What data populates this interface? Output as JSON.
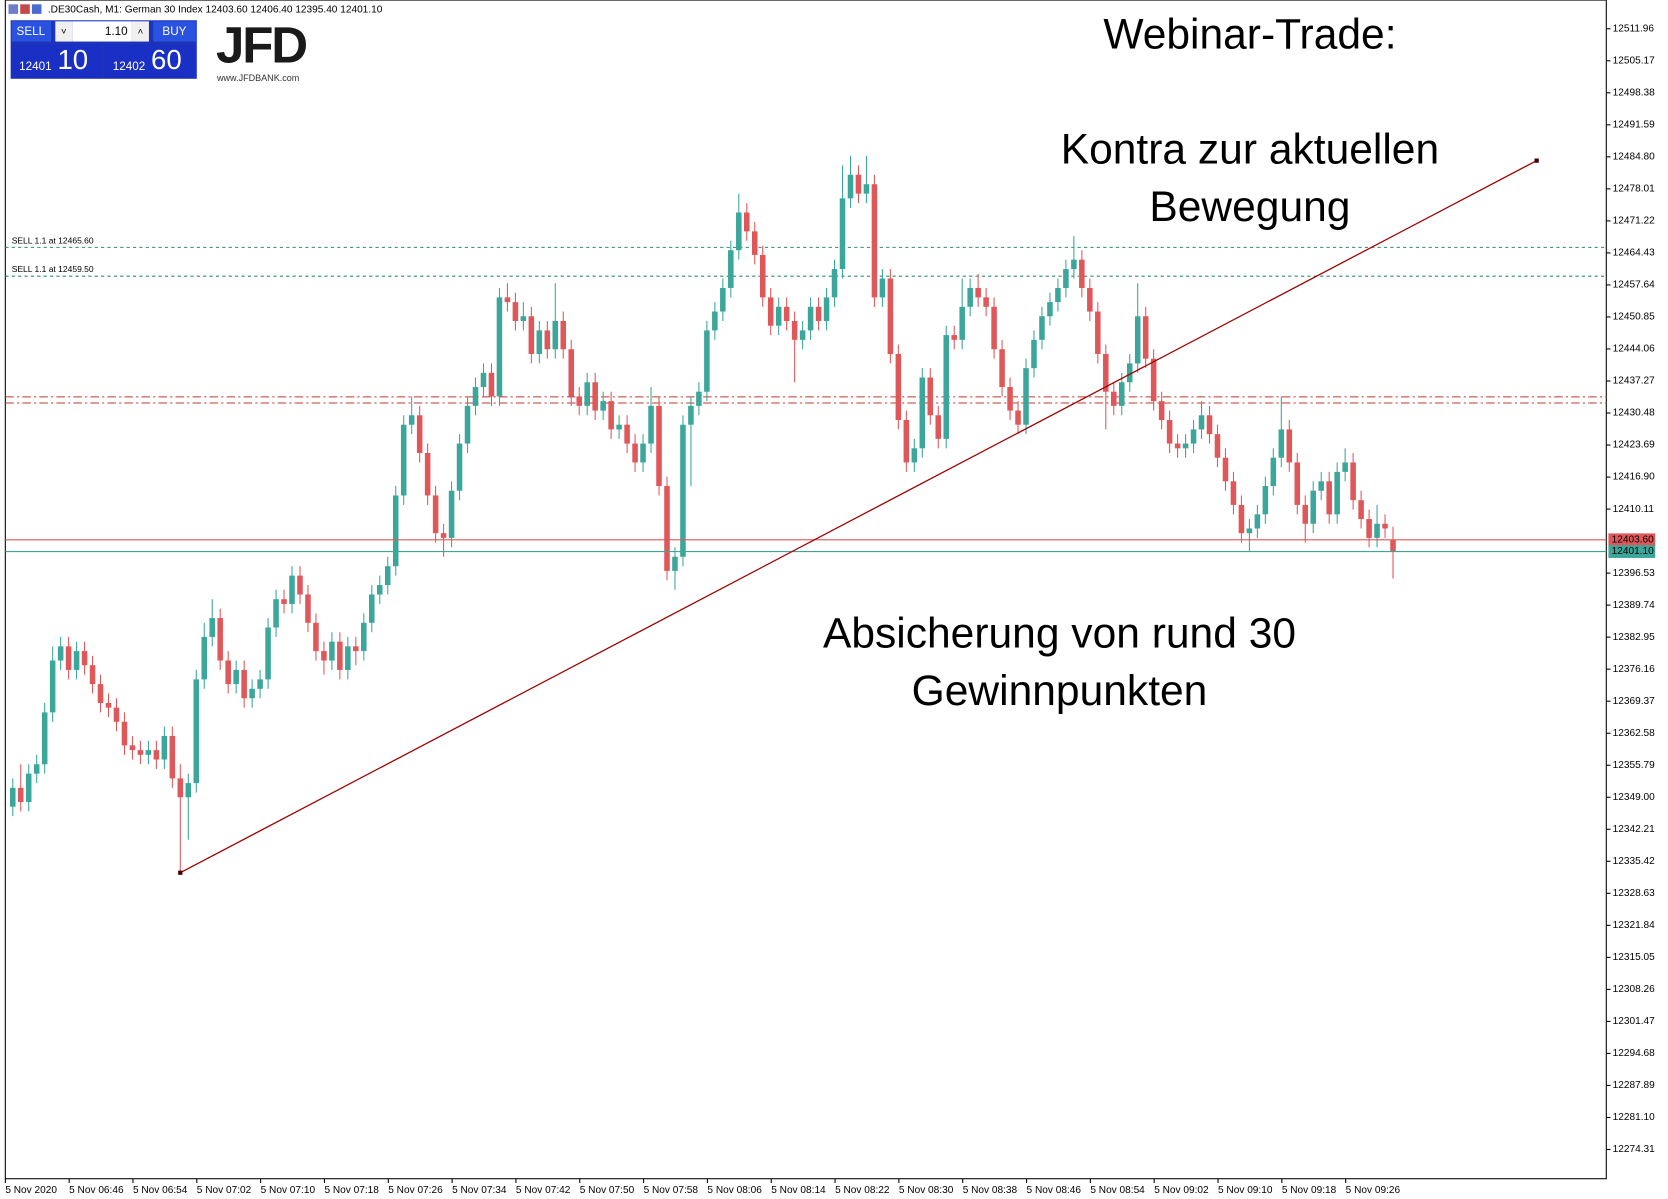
{
  "header": {
    "title": ".DE30Cash, M1:  German 30 Index  12403.60 12406.40 12395.40 12401.10"
  },
  "trade_panel": {
    "sell": "SELL",
    "buy": "BUY",
    "lot": "1.10",
    "sell_price": "12401",
    "sell_pips": "10",
    "buy_price": "12402",
    "buy_pips": "60"
  },
  "logo": {
    "brand": "JFD",
    "url": "www.JFDBANK.com"
  },
  "annotations": {
    "title": "Webinar-Trade:",
    "line1": "Kontra zur aktuellen",
    "line2": "Bewegung",
    "line3": "Absicherung von rund 30",
    "line4": "Gewinnpunkten"
  },
  "chart_data": {
    "type": "candlestick",
    "up_color": "#3aa79a",
    "down_color": "#e0575a",
    "ylim": [
      12268.11,
      12518.05
    ],
    "yticks": [
      12511.96,
      12505.17,
      12498.38,
      12491.59,
      {
        "value": 12484.8,
        "label": "12484.80"
      },
      12478.01,
      12471.22,
      12464.43,
      12457.64,
      12450.85,
      12444.06,
      12437.27,
      12430.48,
      12423.69,
      {
        "value": 12416.9,
        "label": "12416.90"
      },
      12410.11,
      12396.53,
      12389.74,
      12382.95,
      12376.16,
      12369.37,
      12362.58,
      12355.79,
      {
        "value": 12349,
        "label": "12349.00"
      },
      12342.21,
      12335.42,
      12328.63,
      12321.84,
      12315.05,
      12308.26,
      12301.47,
      12294.68,
      12287.89,
      {
        "value": 12281.1,
        "label": "12281.10"
      },
      12274.31
    ],
    "xtick_labels": [
      "5 Nov 2020",
      "5 Nov 06:46",
      "5 Nov 06:54",
      "5 Nov 07:02",
      "5 Nov 07:10",
      "5 Nov 07:18",
      "5 Nov 07:26",
      "5 Nov 07:34",
      "5 Nov 07:42",
      "5 Nov 07:50",
      "5 Nov 07:58",
      "5 Nov 08:06",
      "5 Nov 08:14",
      "5 Nov 08:22",
      "5 Nov 08:30",
      "5 Nov 08:38",
      "5 Nov 08:46",
      "5 Nov 08:54",
      "5 Nov 09:02",
      "5 Nov 09:10",
      "5 Nov 09:18",
      "5 Nov 09:26"
    ],
    "open": [
      12347,
      12351,
      12348,
      12354,
      12356,
      12367,
      12378,
      12381,
      12376,
      12380,
      12377,
      12373,
      12369,
      12368,
      12365,
      12360,
      12359,
      12358,
      12359,
      12357,
      12362,
      12353,
      12349,
      12352,
      12374,
      12383,
      12387,
      12378,
      12373,
      12376,
      12370,
      12372,
      12374,
      12385,
      12391,
      12390,
      12396,
      12392,
      12386,
      12380,
      12378,
      12382,
      12376,
      12381,
      12380,
      12386,
      12392,
      12394,
      12398,
      12413,
      12428,
      12430,
      12422,
      12413,
      12405,
      12404,
      12414,
      12424,
      12432,
      12436,
      12439,
      12434,
      12455,
      12454,
      12450,
      12451,
      12443,
      12448,
      12444,
      12450,
      12444,
      12434,
      12432,
      12437,
      12431,
      12433,
      12427,
      12428,
      12424,
      12420,
      12424,
      12432,
      12415,
      12397,
      12400,
      12428,
      12432,
      12435,
      12448,
      12452,
      12457,
      12465,
      12473,
      12469,
      12464,
      12455,
      12449,
      12453,
      12450,
      12446,
      12448,
      12453,
      12450,
      12455,
      12461,
      12476,
      12481,
      12477,
      12479,
      12455,
      12459,
      12443,
      12429,
      12420,
      12423,
      12438,
      12430,
      12425,
      12447,
      12446,
      12453,
      12457,
      12455,
      12453,
      12444,
      12436,
      12431,
      12428,
      12440,
      12446,
      12451,
      12454,
      12457,
      12461,
      12463,
      12457,
      12452,
      12443,
      12435,
      12432,
      12437,
      12441,
      12451,
      12442,
      12433,
      12429,
      12424,
      12423,
      12424,
      12427,
      12430,
      12426,
      12421,
      12416,
      12411,
      12405,
      12406,
      12409,
      12415,
      12421,
      12427,
      12420,
      12411,
      12407,
      12414,
      12416,
      12409,
      12418,
      12420,
      12412,
      12408,
      12404,
      12407,
      12403.6
    ],
    "high": [
      12353,
      12356,
      12356,
      12358,
      12369,
      12381,
      12383,
      12383,
      12382,
      12382,
      12379,
      12375,
      12371,
      12370,
      12367,
      12362,
      12361,
      12361,
      12361,
      12364,
      12364,
      12356,
      12354,
      12376,
      12386,
      12391,
      12389,
      12380,
      12378,
      12378,
      12374,
      12376,
      12387,
      12393,
      12393,
      12398,
      12398,
      12394,
      12388,
      12382,
      12384,
      12384,
      12383,
      12383,
      12388,
      12394,
      12396,
      12400,
      12415,
      12430,
      12434,
      12432,
      12424,
      12415,
      12407,
      12416,
      12426,
      12434,
      12438,
      12441,
      12441,
      12457,
      12458,
      12456,
      12454,
      12453,
      12450,
      12450,
      12458,
      12452,
      12446,
      12436,
      12439,
      12439,
      12435,
      12435,
      12430,
      12430,
      12426,
      12426,
      12436,
      12434,
      12417,
      12402,
      12430,
      12434,
      12437,
      12450,
      12454,
      12459,
      12467,
      12477,
      12475,
      12471,
      12466,
      12457,
      12455,
      12455,
      12452,
      12450,
      12455,
      12455,
      12457,
      12463,
      12483,
      12485,
      12483,
      12485,
      12481,
      12461,
      12461,
      12445,
      12431,
      12425,
      12440,
      12440,
      12432,
      12449,
      12449,
      12459,
      12459,
      12460,
      12457,
      12455,
      12446,
      12438,
      12433,
      12442,
      12448,
      12453,
      12456,
      12459,
      12463,
      12468,
      12465,
      12459,
      12454,
      12445,
      12437,
      12439,
      12443,
      12458,
      12453,
      12444,
      12435,
      12431,
      12426,
      12426,
      12429,
      12433,
      12432,
      12428,
      12423,
      12418,
      12413,
      12408,
      12411,
      12417,
      12423,
      12434,
      12429,
      12422,
      12413,
      12416,
      12418,
      12418,
      12420,
      12423,
      12422,
      12414,
      12410,
      12411,
      12409,
      12406.4
    ],
    "low": [
      12345,
      12346,
      12346,
      12352,
      12354,
      12365,
      12376,
      12374,
      12374,
      12375,
      12371,
      12367,
      12366,
      12363,
      12358,
      12357,
      12356,
      12356,
      12355,
      12355,
      12351,
      12333,
      12340,
      12350,
      12372,
      12381,
      12376,
      12371,
      12371,
      12368,
      12368,
      12370,
      12372,
      12383,
      12388,
      12388,
      12390,
      12384,
      12378,
      12375,
      12376,
      12374,
      12374,
      12377,
      12378,
      12384,
      12390,
      12392,
      12396,
      12411,
      12426,
      12420,
      12411,
      12403,
      12400,
      12402,
      12412,
      12422,
      12430,
      12434,
      12432,
      12432,
      12452,
      12448,
      12448,
      12441,
      12441,
      12442,
      12442,
      12442,
      12432,
      12430,
      12430,
      12429,
      12429,
      12425,
      12425,
      12422,
      12418,
      12418,
      12422,
      12413,
      12395,
      12393,
      12398,
      12415,
      12430,
      12433,
      12446,
      12450,
      12455,
      12463,
      12467,
      12462,
      12453,
      12447,
      12447,
      12448,
      12437,
      12444,
      12446,
      12448,
      12448,
      12453,
      12459,
      12474,
      12475,
      12475,
      12453,
      12453,
      12441,
      12427,
      12418,
      12418,
      12421,
      12428,
      12423,
      12423,
      12444,
      12444,
      12451,
      12453,
      12451,
      12442,
      12434,
      12429,
      12426,
      12426,
      12438,
      12444,
      12449,
      12452,
      12455,
      12459,
      12455,
      12450,
      12441,
      12427,
      12430,
      12430,
      12435,
      12439,
      12440,
      12431,
      12427,
      12422,
      12421,
      12421,
      12422,
      12425,
      12424,
      12419,
      12414,
      12409,
      12403,
      12401,
      12404,
      12407,
      12413,
      12419,
      12418,
      12409,
      12403,
      12405,
      12412,
      12407,
      12407,
      12416,
      12410,
      12406,
      12402,
      12402,
      12404,
      12395.4
    ],
    "close": [
      12351,
      12348,
      12354,
      12356,
      12367,
      12378,
      12381,
      12376,
      12380,
      12377,
      12373,
      12369,
      12368,
      12365,
      12360,
      12359,
      12358,
      12359,
      12357,
      12362,
      12353,
      12349,
      12352,
      12374,
      12383,
      12387,
      12378,
      12373,
      12376,
      12370,
      12372,
      12374,
      12385,
      12391,
      12390,
      12396,
      12392,
      12386,
      12380,
      12378,
      12382,
      12376,
      12381,
      12380,
      12386,
      12392,
      12394,
      12398,
      12413,
      12428,
      12430,
      12422,
      12413,
      12405,
      12404,
      12414,
      12424,
      12432,
      12436,
      12439,
      12434,
      12455,
      12454,
      12450,
      12451,
      12443,
      12448,
      12444,
      12450,
      12444,
      12434,
      12432,
      12437,
      12431,
      12433,
      12427,
      12428,
      12424,
      12420,
      12424,
      12432,
      12415,
      12397,
      12400,
      12428,
      12432,
      12435,
      12448,
      12452,
      12457,
      12465,
      12473,
      12469,
      12464,
      12455,
      12449,
      12453,
      12450,
      12446,
      12448,
      12453,
      12450,
      12455,
      12461,
      12476,
      12481,
      12477,
      12479,
      12455,
      12459,
      12443,
      12429,
      12420,
      12423,
      12438,
      12430,
      12425,
      12447,
      12446,
      12453,
      12457,
      12455,
      12453,
      12444,
      12436,
      12431,
      12428,
      12440,
      12446,
      12451,
      12454,
      12457,
      12461,
      12463,
      12457,
      12452,
      12443,
      12435,
      12432,
      12437,
      12441,
      12451,
      12442,
      12433,
      12429,
      12424,
      12423,
      12424,
      12427,
      12430,
      12426,
      12421,
      12416,
      12411,
      12405,
      12406,
      12409,
      12415,
      12421,
      12427,
      12420,
      12411,
      12407,
      12414,
      12416,
      12409,
      12418,
      12420,
      12412,
      12408,
      12404,
      12407,
      12406,
      12401.1
    ],
    "levels": [
      {
        "label": "SELL 1.1 at 12465.60",
        "value": 12465.6,
        "color": "#2e8b6e",
        "style": "dashed"
      },
      {
        "label": "SELL 1.1 at 12459.50",
        "value": 12459.5,
        "color": "#2e8b6e",
        "style": "dashed"
      },
      {
        "value": 12433.9,
        "color": "#c0392b",
        "style": "dashdot"
      },
      {
        "value": 12432.6,
        "color": "#c0392b",
        "style": "dashdot"
      }
    ],
    "ask": {
      "value": 12403.6,
      "label": "12403.60",
      "color": "#e0575a"
    },
    "bid": {
      "value": 12401.1,
      "label": "12401.10",
      "color": "#3aa79a"
    },
    "trendline": {
      "x": [
        21,
        191
      ],
      "y": [
        12333,
        12484
      ],
      "color": "#a00000"
    }
  }
}
